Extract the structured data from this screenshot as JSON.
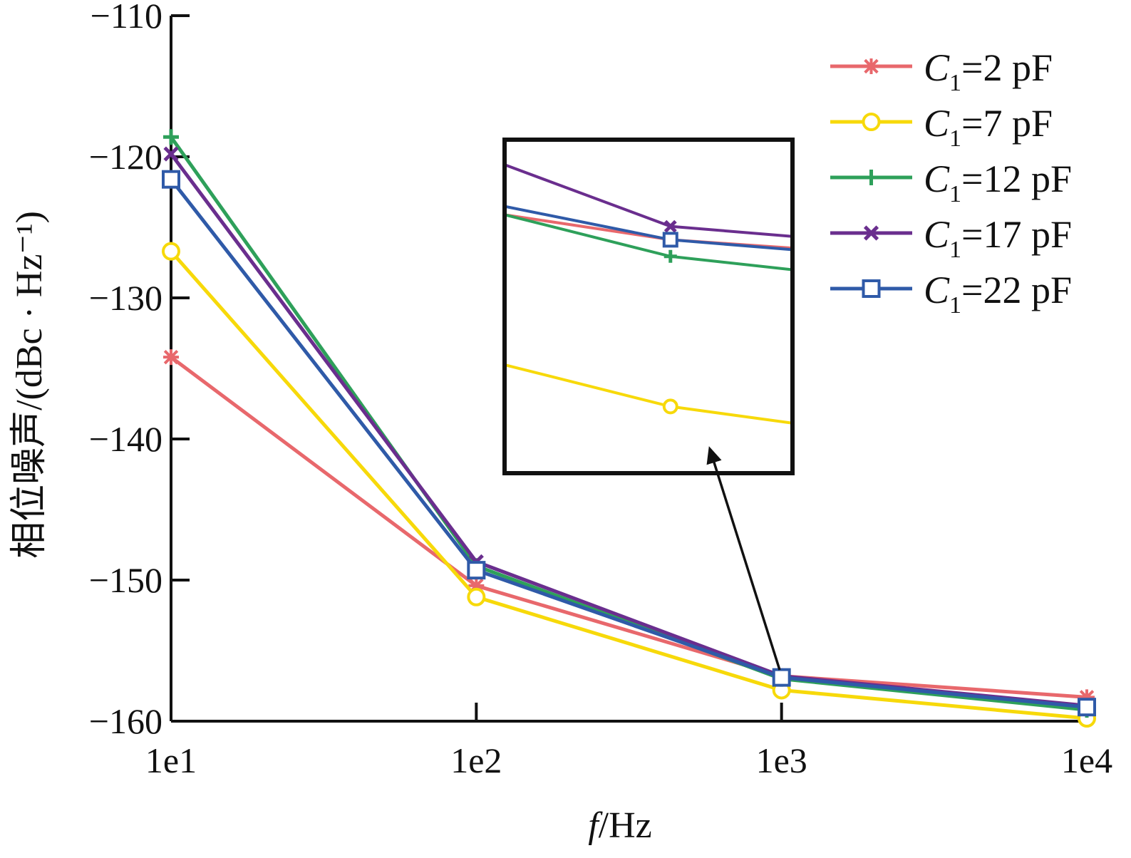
{
  "chart_data": {
    "type": "line",
    "xlabel_italic": "f",
    "xlabel_rest": "/Hz",
    "ylabel": "相位噪声/(dBc · Hz⁻¹)",
    "x_scale": "log",
    "x": [
      10,
      100,
      1000,
      10000
    ],
    "x_tick_labels": [
      "1e1",
      "1e2",
      "1e3",
      "1e4"
    ],
    "ylim": [
      -160,
      -110
    ],
    "y_ticks": [
      -110,
      -120,
      -130,
      -140,
      -150,
      -160
    ],
    "y_tick_labels": [
      "−110",
      "−120",
      "−130",
      "−140",
      "−150",
      "−160"
    ],
    "grid": false,
    "legend_position": "top-right",
    "series": [
      {
        "name_var": "C",
        "name_sub": "1",
        "name_rest": "=2 pF",
        "color": "#e8686c",
        "marker": "asterisk",
        "values": [
          -134.2,
          -150.4,
          -156.8,
          -158.3
        ]
      },
      {
        "name_var": "C",
        "name_sub": "1",
        "name_rest": "=7 pF",
        "color": "#f7d90a",
        "marker": "circle",
        "values": [
          -126.7,
          -151.2,
          -157.8,
          -159.8
        ]
      },
      {
        "name_var": "C",
        "name_sub": "1",
        "name_rest": "=12 pF",
        "color": "#2ea05a",
        "marker": "plus",
        "values": [
          -118.6,
          -149.0,
          -157.0,
          -159.2
        ]
      },
      {
        "name_var": "C",
        "name_sub": "1",
        "name_rest": "=17 pF",
        "color": "#6a2e8e",
        "marker": "x",
        "values": [
          -119.8,
          -148.7,
          -156.8,
          -158.9
        ]
      },
      {
        "name_var": "C",
        "name_sub": "1",
        "name_rest": "=22 pF",
        "color": "#2f5aa8",
        "marker": "square",
        "values": [
          -121.6,
          -149.3,
          -156.9,
          -159.0
        ]
      }
    ],
    "inset": {
      "description_note": "",
      "x_points": [
        700,
        1000,
        1300
      ],
      "series_values": [
        [
          -156.65,
          -156.8,
          -156.85
        ],
        [
          -157.55,
          -157.8,
          -157.9
        ],
        [
          -156.65,
          -156.9,
          -156.98
        ],
        [
          -156.35,
          -156.72,
          -156.78
        ],
        [
          -156.6,
          -156.8,
          -156.86
        ]
      ],
      "ylim": [
        -158.2,
        -156.2
      ]
    }
  }
}
